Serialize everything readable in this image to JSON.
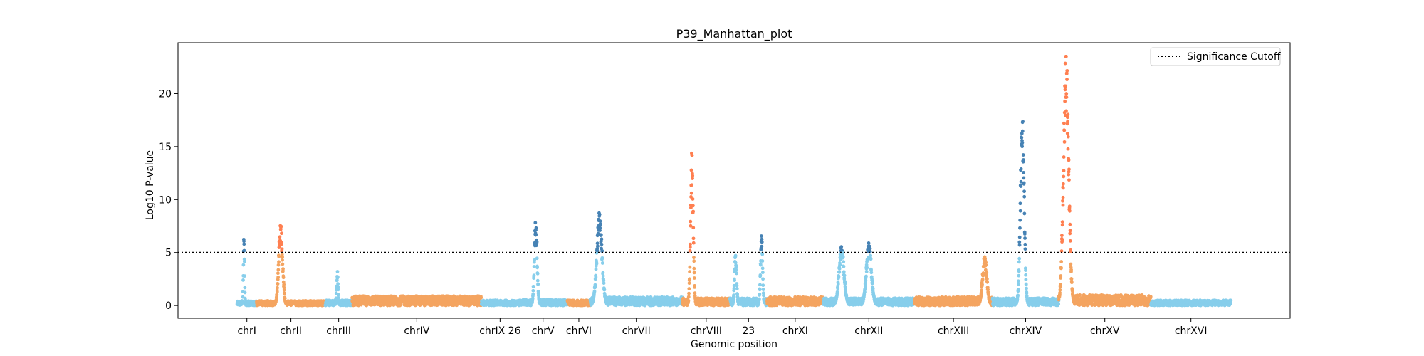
{
  "chart_data": {
    "type": "scatter",
    "title": "P39_Manhattan_plot",
    "xlabel": "Genomic position",
    "ylabel": "Log10 P-value",
    "ylim": [
      -1.2,
      24.8
    ],
    "yticks": [
      0,
      5,
      10,
      15,
      20
    ],
    "threshold": 5,
    "legend": {
      "label": "Significance Cutoff",
      "placement": "top-right"
    },
    "grid": false,
    "colors": {
      "light_blue": "#87CEEB",
      "dark_blue": "#4682B4",
      "light_orange": "#F4A460",
      "dark_orange": "#FF7F50"
    },
    "chromosomes": [
      {
        "label": "chrI",
        "start": 0,
        "end": 230,
        "base": "light_blue",
        "peaks": [
          {
            "pos": 0.35,
            "height": 6.6
          }
        ],
        "noise": 0.45
      },
      {
        "label": "chrII",
        "start": 230,
        "end": 1043,
        "base": "light_orange",
        "peaks": [
          {
            "pos": 0.35,
            "height": 7.6
          }
        ],
        "noise": 0.45
      },
      {
        "label": "chrIII",
        "start": 1043,
        "end": 1360,
        "base": "light_blue",
        "peaks": [
          {
            "pos": 0.45,
            "height": 3.2
          }
        ],
        "noise": 0.5
      },
      {
        "label": "chrIV",
        "start": 1360,
        "end": 2892,
        "base": "light_orange",
        "peaks": [],
        "noise": 0.9
      },
      {
        "label": "chrIX 26",
        "start": 2892,
        "end": 3332,
        "base": "light_blue",
        "peaks": [],
        "noise": 0.5
      },
      {
        "label": "chrV",
        "start": 3332,
        "end": 3909,
        "base": "light_blue",
        "peaks": [
          {
            "pos": 0.35,
            "height": 8.2
          }
        ],
        "noise": 0.55
      },
      {
        "label": "chrVI",
        "start": 3909,
        "end": 4179,
        "base": "light_orange",
        "peaks": [],
        "noise": 0.5
      },
      {
        "label": "chrVII",
        "start": 4179,
        "end": 5270,
        "base": "light_blue",
        "peaks": [
          {
            "pos": 0.1,
            "height": 8.6
          }
        ],
        "noise": 0.8
      },
      {
        "label": "chrVIII",
        "start": 5270,
        "end": 5833,
        "base": "light_orange",
        "peaks": [
          {
            "pos": 0.2,
            "height": 14.3
          }
        ],
        "noise": 0.7
      },
      {
        "label": "23",
        "start": 5833,
        "end": 6272,
        "base": "light_blue",
        "peaks": [
          {
            "pos": 0.15,
            "height": 5.0
          },
          {
            "pos": 0.85,
            "height": 6.6
          }
        ],
        "noise": 0.7
      },
      {
        "label": "chrXI",
        "start": 6272,
        "end": 6938,
        "base": "light_orange",
        "peaks": [],
        "noise": 0.8
      },
      {
        "label": "chrXII",
        "start": 6938,
        "end": 8016,
        "base": "light_blue",
        "peaks": [
          {
            "pos": 0.2,
            "height": 5.5
          },
          {
            "pos": 0.5,
            "height": 5.8
          }
        ],
        "noise": 0.7
      },
      {
        "label": "chrXIII",
        "start": 8016,
        "end": 8940,
        "base": "light_orange",
        "peaks": [
          {
            "pos": 0.9,
            "height": 4.6
          }
        ],
        "noise": 0.8
      },
      {
        "label": "chrXIV",
        "start": 8940,
        "end": 9724,
        "base": "light_blue",
        "peaks": [
          {
            "pos": 0.45,
            "height": 18.3
          }
        ],
        "noise": 0.7
      },
      {
        "label": "chrXV",
        "start": 9724,
        "end": 10815,
        "base": "light_orange",
        "peaks": [
          {
            "pos": 0.08,
            "height": 23.5
          }
        ],
        "noise": 1.0
      },
      {
        "label": "chrXVI",
        "start": 10815,
        "end": 11763,
        "base": "light_blue",
        "peaks": [],
        "noise": 0.5
      }
    ]
  }
}
